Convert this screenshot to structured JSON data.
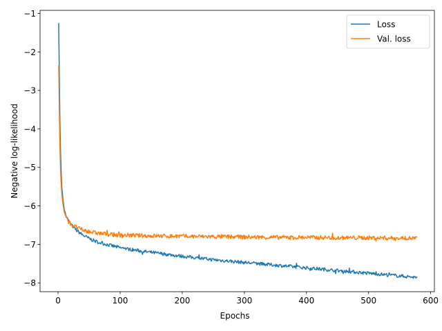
{
  "chart_data": {
    "type": "line",
    "title": "",
    "xlabel": "Epochs",
    "ylabel": "Negative log-likelihood",
    "xlim": [
      -29,
      606
    ],
    "ylim": [
      -8.23,
      -0.92
    ],
    "xticks": [
      0,
      100,
      200,
      300,
      400,
      500,
      600
    ],
    "yticks": [
      -8,
      -7,
      -6,
      -5,
      -4,
      -3,
      -2,
      -1
    ],
    "grid": false,
    "legend": "top-right",
    "noise_seed": 7,
    "series": [
      {
        "name": "Loss",
        "color": "#1f77b4",
        "noise": 0.022,
        "x": [
          1,
          2,
          3,
          4,
          5,
          6,
          8,
          10,
          13,
          16,
          20,
          25,
          30,
          35,
          40,
          50,
          60,
          70,
          80,
          90,
          100,
          120,
          140,
          160,
          180,
          200,
          250,
          300,
          350,
          400,
          450,
          500,
          550,
          578
        ],
        "y": [
          -1.25,
          -2.6,
          -3.8,
          -4.6,
          -5.1,
          -5.5,
          -5.85,
          -6.1,
          -6.25,
          -6.36,
          -6.46,
          -6.56,
          -6.64,
          -6.7,
          -6.76,
          -6.85,
          -6.92,
          -6.97,
          -7.01,
          -7.05,
          -7.09,
          -7.14,
          -7.19,
          -7.23,
          -7.27,
          -7.31,
          -7.4,
          -7.47,
          -7.54,
          -7.61,
          -7.68,
          -7.75,
          -7.82,
          -7.86
        ]
      },
      {
        "name": "Val. loss",
        "color": "#ff7f0e",
        "noise": 0.028,
        "x": [
          1,
          2,
          3,
          4,
          5,
          6,
          8,
          10,
          13,
          16,
          20,
          25,
          30,
          35,
          40,
          50,
          60,
          70,
          80,
          90,
          100,
          150,
          200,
          250,
          300,
          350,
          400,
          450,
          500,
          550,
          578
        ],
        "y": [
          -2.35,
          -3.6,
          -4.5,
          -5.1,
          -5.45,
          -5.7,
          -5.98,
          -6.16,
          -6.3,
          -6.39,
          -6.46,
          -6.52,
          -6.56,
          -6.6,
          -6.63,
          -6.67,
          -6.7,
          -6.72,
          -6.74,
          -6.75,
          -6.76,
          -6.78,
          -6.79,
          -6.8,
          -6.81,
          -6.82,
          -6.82,
          -6.83,
          -6.83,
          -6.84,
          -6.84
        ]
      }
    ]
  }
}
